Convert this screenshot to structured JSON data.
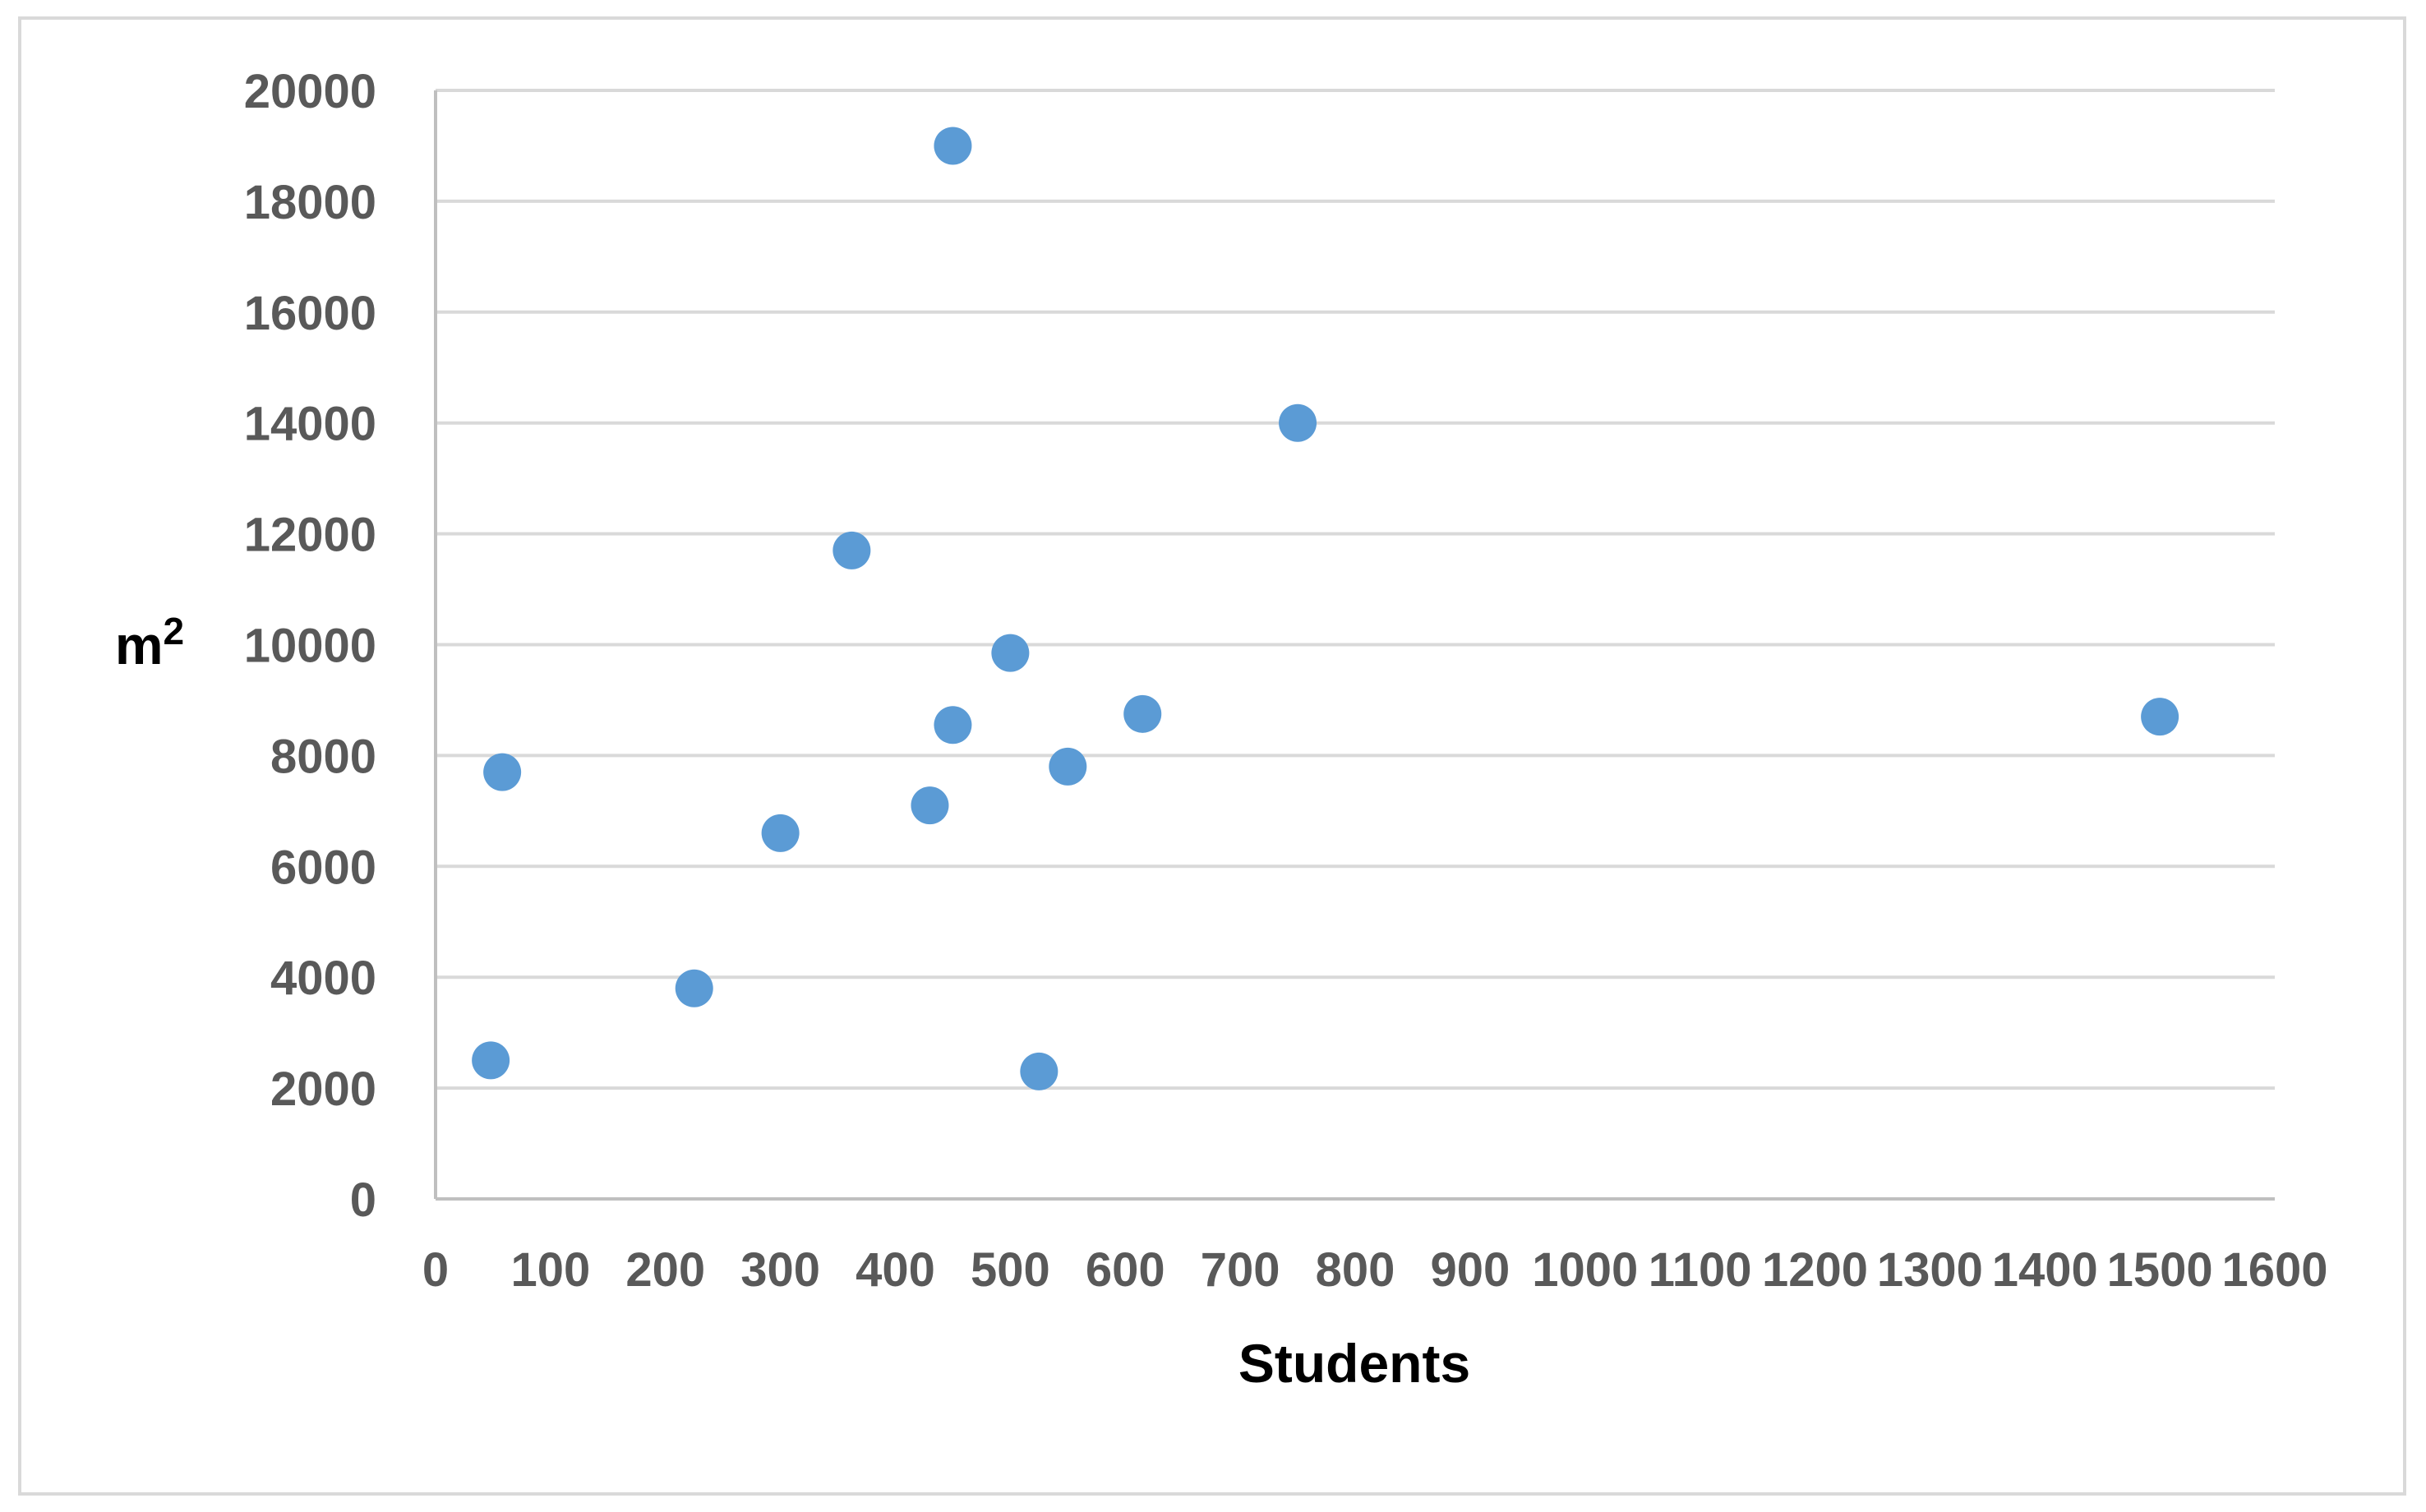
{
  "chart_data": {
    "type": "scatter",
    "title": "",
    "xlabel": "Students",
    "ylabel_base": "m",
    "ylabel_sup": "2",
    "xlim": [
      0,
      1600
    ],
    "ylim": [
      0,
      20000
    ],
    "x_ticks": [
      "0",
      "100",
      "200",
      "300",
      "400",
      "500",
      "600",
      "700",
      "800",
      "900",
      "1000",
      "1100",
      "1200",
      "1300",
      "1400",
      "1500",
      "1600"
    ],
    "y_ticks": [
      "0",
      "2000",
      "4000",
      "6000",
      "8000",
      "10000",
      "12000",
      "14000",
      "16000",
      "18000",
      "20000"
    ],
    "grid": {
      "horizontal": true,
      "vertical": false
    },
    "legend": "none",
    "colors": {
      "marker": "#5b9bd5",
      "gridline": "#d9d9d9",
      "axis": "#bfbfbf",
      "tick_text": "#595959",
      "title_text": "#000000",
      "frame": "#d9d9d9"
    },
    "series": [
      {
        "points": [
          {
            "x": 48,
            "y": 2500
          },
          {
            "x": 58,
            "y": 7700
          },
          {
            "x": 225,
            "y": 3800
          },
          {
            "x": 300,
            "y": 6600
          },
          {
            "x": 362,
            "y": 11700
          },
          {
            "x": 430,
            "y": 7100
          },
          {
            "x": 450,
            "y": 19000
          },
          {
            "x": 450,
            "y": 8550
          },
          {
            "x": 500,
            "y": 9850
          },
          {
            "x": 525,
            "y": 2300
          },
          {
            "x": 550,
            "y": 7800
          },
          {
            "x": 615,
            "y": 8750
          },
          {
            "x": 750,
            "y": 14000
          },
          {
            "x": 1500,
            "y": 8700
          }
        ]
      }
    ]
  }
}
